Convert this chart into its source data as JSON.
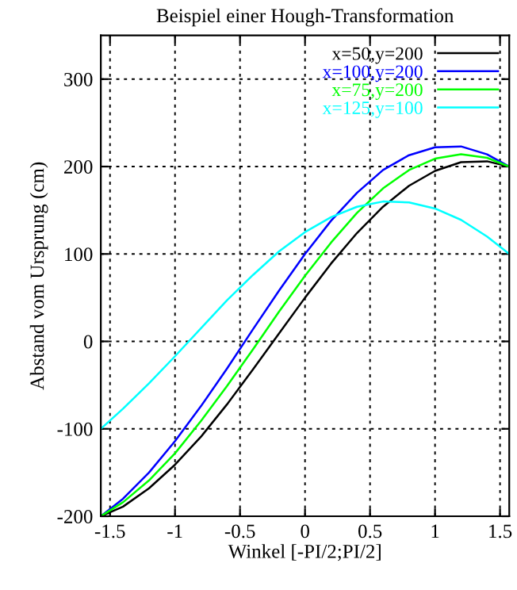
{
  "chart_data": {
    "type": "line",
    "title": "Beispiel einer Hough-Transformation",
    "xlabel": "Winkel [-PI/2;PI/2]",
    "ylabel": "Abstand vom Ursprung (cm)",
    "x": [
      -1.5708,
      -1.4,
      -1.2,
      -1.0,
      -0.8,
      -0.6,
      -0.4,
      -0.2,
      0,
      0.2,
      0.4,
      0.6,
      0.8,
      1.0,
      1.2,
      1.4,
      1.5708
    ],
    "series": [
      {
        "name": "x=50,y=200",
        "color": "#000000",
        "values": [
          -200,
          -189,
          -168,
          -141,
          -109,
          -72,
          -32,
          9,
          50,
          89,
          124,
          154,
          178,
          195,
          205,
          206,
          200
        ]
      },
      {
        "name": "x=100,y=200",
        "color": "#0000ff",
        "values": [
          -200,
          -180,
          -150,
          -114,
          -74,
          -31,
          14,
          58,
          100,
          138,
          170,
          196,
          213,
          222,
          223,
          214,
          200
        ]
      },
      {
        "name": "x=75,y=200",
        "color": "#00ff00",
        "values": [
          -200,
          -184,
          -159,
          -128,
          -91,
          -51,
          -9,
          34,
          75,
          113,
          147,
          175,
          196,
          209,
          214,
          210,
          200
        ]
      },
      {
        "name": "x=125,y=100",
        "color": "#00ffff",
        "values": [
          -100,
          -77,
          -48,
          -17,
          15,
          47,
          76,
          103,
          125,
          142,
          154,
          160,
          159,
          152,
          139,
          120,
          100
        ]
      }
    ],
    "xlim": [
      -1.5708,
      1.5708
    ],
    "ylim": [
      -200,
      350
    ],
    "xticks": [
      -1.5,
      -1,
      -0.5,
      0,
      0.5,
      1,
      1.5
    ],
    "yticks": [
      -200,
      -100,
      0,
      100,
      200,
      300
    ],
    "grid": true,
    "legend": "top right",
    "marker": "none",
    "line_style": "solid"
  }
}
